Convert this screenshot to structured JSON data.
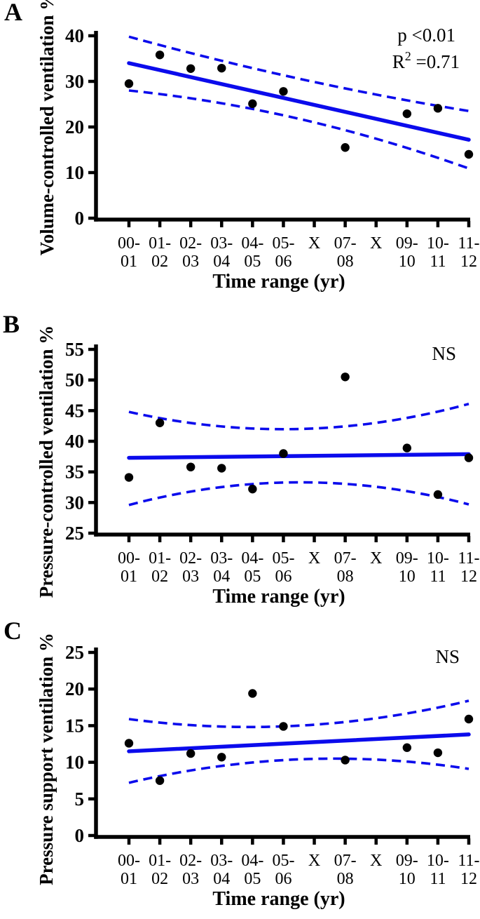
{
  "figure": {
    "accent_color": "#0b0bec",
    "axis_color": "#000000",
    "point_color": "#000000",
    "background": "#ffffff"
  },
  "chart_data": [
    {
      "panel": "A",
      "type": "scatter",
      "title": "",
      "ylabel": "Volume-controlled ventilation  %",
      "xlabel": "Time range (yr)",
      "categories": [
        "00-01",
        "01-02",
        "02-03",
        "03-04",
        "04-05",
        "05-06",
        "X",
        "07-08",
        "X",
        "09-10",
        "10-11",
        "11-12"
      ],
      "values": [
        29.5,
        35.8,
        32.8,
        32.9,
        25.1,
        27.8,
        null,
        15.5,
        null,
        22.9,
        24.1,
        14.0
      ],
      "ylim": [
        0,
        40
      ],
      "yticks": [
        0,
        10,
        20,
        30,
        40
      ],
      "grid": false,
      "legend": "none",
      "trend_line": {
        "type": "linear",
        "start": 34.0,
        "end": 17.2
      },
      "ci_upper": {
        "start": 39.8,
        "mid": 30.6,
        "end": 23.5
      },
      "ci_lower": {
        "start": 28.0,
        "mid": 21.8,
        "end": 10.9
      },
      "annotations": [
        {
          "text": "p <0.01"
        },
        {
          "base": "R",
          "sup": "2",
          "rest": " =0.71"
        }
      ]
    },
    {
      "panel": "B",
      "type": "scatter",
      "title": "",
      "ylabel": "Pressure-controlled ventilation  %",
      "xlabel": "Time range (yr)",
      "categories": [
        "00-01",
        "01-02",
        "02-03",
        "03-04",
        "04-05",
        "05-06",
        "X",
        "07-08",
        "X",
        "09-10",
        "10-11",
        "11-12"
      ],
      "values": [
        34.1,
        43.0,
        35.8,
        35.6,
        32.2,
        38.0,
        null,
        50.5,
        null,
        38.9,
        31.3,
        37.3
      ],
      "ylim": [
        25,
        55
      ],
      "yticks": [
        25,
        30,
        35,
        40,
        45,
        50,
        55
      ],
      "grid": false,
      "legend": "none",
      "trend_line": {
        "type": "linear",
        "start": 37.3,
        "end": 37.9
      },
      "ci_upper": {
        "start": 44.8,
        "mid": 42.0,
        "end": 46.1
      },
      "ci_lower": {
        "start": 29.6,
        "mid": 33.3,
        "end": 29.7
      },
      "annotations": [
        {
          "text": "NS"
        }
      ]
    },
    {
      "panel": "C",
      "type": "scatter",
      "title": "",
      "ylabel": "Pressure support ventilation  %",
      "xlabel": "Time range (yr)",
      "categories": [
        "00-01",
        "01-02",
        "02-03",
        "03-04",
        "04-05",
        "05-06",
        "X",
        "07-08",
        "X",
        "09-10",
        "10-11",
        "11-12"
      ],
      "values": [
        12.6,
        7.5,
        11.2,
        10.7,
        19.4,
        14.9,
        null,
        10.3,
        null,
        12.0,
        11.3,
        15.9
      ],
      "ylim": [
        0,
        25
      ],
      "yticks": [
        0,
        5,
        10,
        15,
        20,
        25
      ],
      "grid": false,
      "legend": "none",
      "trend_line": {
        "type": "linear",
        "start": 11.5,
        "end": 13.8
      },
      "ci_upper": {
        "start": 15.9,
        "mid": 15.0,
        "end": 18.4
      },
      "ci_lower": {
        "start": 7.2,
        "mid": 10.4,
        "end": 9.1
      },
      "annotations": [
        {
          "text": "NS"
        }
      ]
    }
  ]
}
